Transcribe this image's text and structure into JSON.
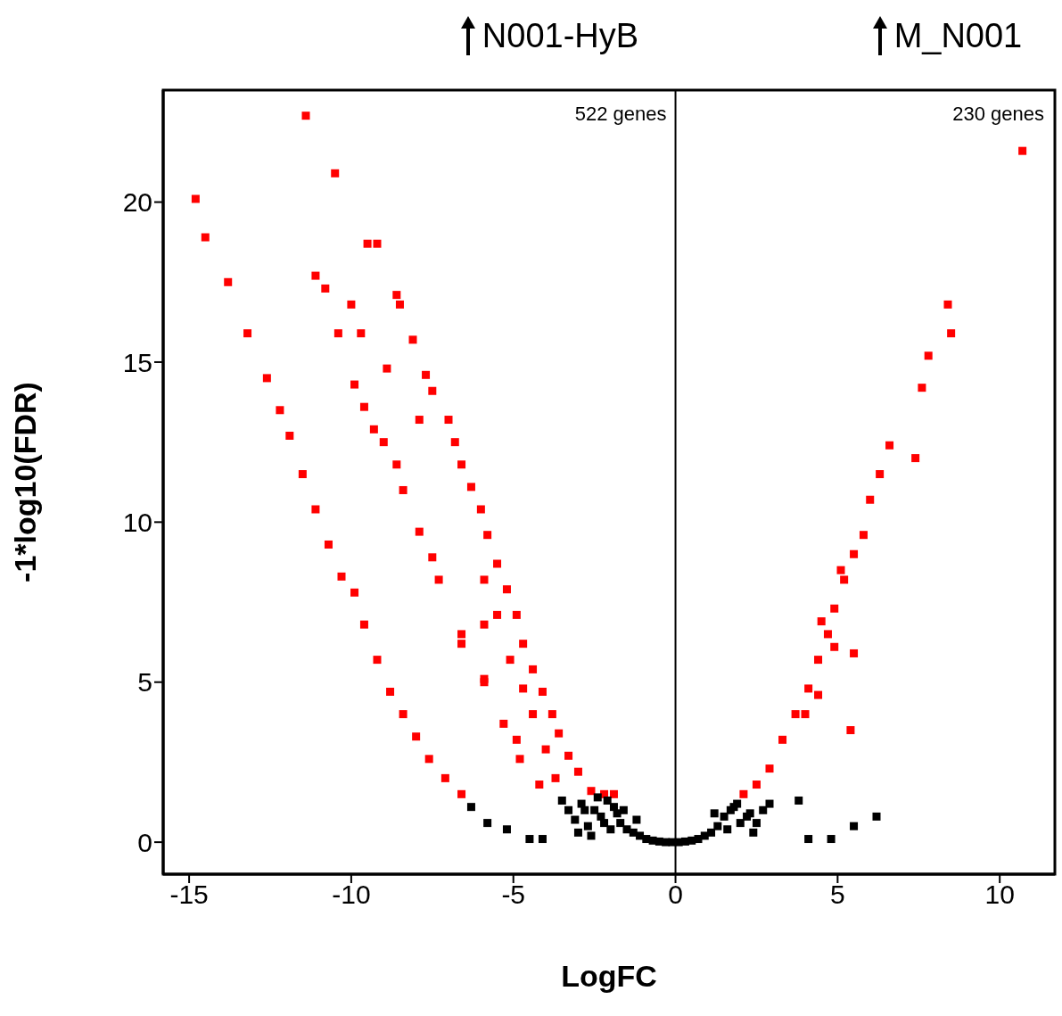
{
  "chart_data": {
    "type": "scatter",
    "xlabel": "LogFC",
    "ylabel": "-1*log10(FDR)",
    "xlim": [
      -15.8,
      11.7
    ],
    "ylim": [
      -1,
      23.5
    ],
    "xticks": [
      -15,
      -10,
      -5,
      0,
      5,
      10
    ],
    "yticks": [
      0,
      5,
      10,
      15,
      20
    ],
    "marker": "square",
    "grid": false,
    "ref_lines": [
      {
        "axis": "x",
        "value": 0,
        "color": "#000000"
      }
    ],
    "annotations": [
      "N001-HyB",
      "M_N001",
      "522 genes",
      "230 genes"
    ],
    "series": [
      {
        "color": "#ff0000",
        "x": [
          -14.8,
          -14.5,
          -13.8,
          -13.2,
          -12.6,
          -12.2,
          -11.9,
          -11.5,
          -11.1,
          -10.7,
          -10.3,
          -9.9,
          -9.6,
          -9.2,
          -8.8,
          -8.4,
          -8.0,
          -7.6,
          -7.1,
          -6.6,
          -11.4,
          -10.5,
          -9.5,
          -9.2,
          -11.1,
          -10.8,
          -10.0,
          -10.4,
          -9.7,
          -9.9,
          -9.6,
          -9.3,
          -9.0,
          -8.6,
          -8.4,
          -7.9,
          -7.5,
          -7.3,
          -6.6,
          -5.9,
          -5.3,
          -4.8,
          -4.2,
          -8.6,
          -8.5,
          -8.1,
          -8.9,
          -7.7,
          -7.5,
          -7.9,
          -7.0,
          -6.8,
          -6.6,
          -6.3,
          -6.0,
          -5.8,
          -5.5,
          -5.2,
          -4.9,
          -4.7,
          -4.4,
          -4.1,
          -3.8,
          -3.6,
          -3.3,
          -3.0,
          -2.6,
          -2.2,
          -1.9,
          -5.9,
          -6.6,
          -5.9,
          -5.5,
          -5.1,
          -4.7,
          -4.4,
          -4.9,
          -4.0,
          -3.7,
          -5.9,
          10.7,
          8.4,
          8.5,
          7.8,
          7.6,
          7.4,
          6.6,
          6.3,
          6.0,
          5.8,
          5.5,
          5.2,
          4.9,
          4.7,
          4.4,
          4.1,
          3.7,
          3.3,
          2.9,
          2.5,
          2.1,
          5.4,
          5.5,
          4.9,
          4.4,
          4.0,
          5.1,
          4.5
        ],
        "values": [
          20.1,
          18.9,
          17.5,
          15.9,
          14.5,
          13.5,
          12.7,
          11.5,
          10.4,
          9.3,
          8.3,
          7.8,
          6.8,
          5.7,
          4.7,
          4.0,
          3.3,
          2.6,
          2.0,
          1.5,
          22.7,
          20.9,
          18.7,
          18.7,
          17.7,
          17.3,
          16.8,
          15.9,
          15.9,
          14.3,
          13.6,
          12.9,
          12.5,
          11.8,
          11.0,
          9.7,
          8.9,
          8.2,
          6.5,
          5.0,
          3.7,
          2.6,
          1.8,
          17.1,
          16.8,
          15.7,
          14.8,
          14.6,
          14.1,
          13.2,
          13.2,
          12.5,
          11.8,
          11.1,
          10.4,
          9.6,
          8.7,
          7.9,
          7.1,
          6.2,
          5.4,
          4.7,
          4.0,
          3.4,
          2.7,
          2.2,
          1.6,
          1.5,
          1.5,
          8.2,
          6.2,
          6.8,
          7.1,
          5.7,
          4.8,
          4.0,
          3.2,
          2.9,
          2.0,
          5.1,
          21.6,
          16.8,
          15.9,
          15.2,
          14.2,
          12.0,
          12.4,
          11.5,
          10.7,
          9.6,
          9.0,
          8.2,
          7.3,
          6.5,
          5.7,
          4.8,
          4.0,
          3.2,
          2.3,
          1.8,
          1.5,
          3.5,
          5.9,
          6.1,
          4.6,
          4.0,
          8.5,
          6.9
        ]
      },
      {
        "color": "#000000",
        "x": [
          -6.3,
          -5.8,
          -5.2,
          -4.5,
          -4.1,
          -3.5,
          -3.3,
          -3.1,
          -2.9,
          -2.7,
          -2.5,
          -2.3,
          -2.1,
          -1.9,
          -1.7,
          -1.5,
          -1.3,
          -1.1,
          -0.9,
          -0.7,
          -0.5,
          -0.3,
          -0.1,
          -3.0,
          -2.6,
          -2.2,
          -1.8,
          -2.4,
          -2.0,
          -1.6,
          -1.2,
          -2.8,
          0.1,
          0.3,
          0.5,
          0.7,
          0.9,
          1.1,
          1.3,
          1.5,
          1.7,
          1.9,
          2.1,
          2.3,
          2.5,
          2.7,
          2.9,
          1.6,
          2.0,
          2.4,
          1.8,
          2.2,
          1.2,
          3.8,
          4.1,
          4.8,
          5.5,
          6.2
        ],
        "values": [
          1.1,
          0.6,
          0.4,
          0.1,
          0.1,
          1.3,
          1.0,
          0.7,
          1.2,
          0.5,
          1.0,
          0.8,
          1.3,
          1.1,
          0.6,
          0.4,
          0.3,
          0.2,
          0.1,
          0.05,
          0.02,
          0.0,
          0.0,
          0.3,
          0.2,
          0.6,
          0.9,
          1.4,
          0.4,
          1.0,
          0.7,
          1.0,
          0.0,
          0.02,
          0.05,
          0.1,
          0.2,
          0.3,
          0.5,
          0.8,
          1.0,
          1.2,
          null,
          0.9,
          0.6,
          1.0,
          1.2,
          0.4,
          0.6,
          0.3,
          1.1,
          0.8,
          0.9,
          1.3,
          0.1,
          0.1,
          0.5,
          0.8
        ]
      }
    ]
  }
}
